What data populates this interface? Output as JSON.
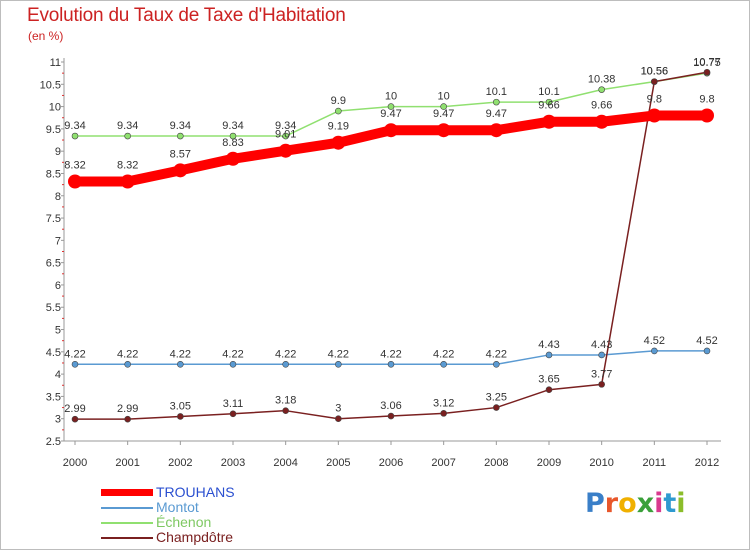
{
  "title": "Evolution du Taux de Taxe d'Habitation",
  "unit": "(en %)",
  "logo": {
    "letters": [
      {
        "ch": "P",
        "color": "#3a7fc8"
      },
      {
        "ch": "r",
        "color": "#e8572b"
      },
      {
        "ch": "o",
        "color": "#f0b000"
      },
      {
        "ch": "x",
        "color": "#3aa03a"
      },
      {
        "ch": "i",
        "color": "#d93a8e"
      },
      {
        "ch": "t",
        "color": "#2e9ad0"
      },
      {
        "ch": "i",
        "color": "#8bbd2a"
      }
    ]
  },
  "chart_data": {
    "type": "line",
    "title": "Evolution du Taux de Taxe d'Habitation",
    "ylabel": "(en %)",
    "xlabel": "",
    "x": [
      "2000",
      "2001",
      "2002",
      "2003",
      "2004",
      "2005",
      "2006",
      "2007",
      "2008",
      "2009",
      "2010",
      "2011",
      "2012"
    ],
    "ylim": [
      2.5,
      11
    ],
    "yticks": [
      "2.5",
      "3",
      "3.5",
      "4",
      "4.5",
      "5",
      "5.5",
      "6",
      "6.5",
      "7",
      "7.5",
      "8",
      "8.5",
      "9",
      "9.5",
      "10",
      "10.5",
      "11"
    ],
    "grid": false,
    "legend_position": "bottom-left",
    "series": [
      {
        "name": "TROUHANS",
        "color": "#ff0000",
        "labelcolor": "#2a4fd0",
        "values": [
          8.32,
          8.32,
          8.57,
          8.83,
          9.01,
          9.19,
          9.47,
          9.47,
          9.47,
          9.66,
          9.66,
          9.8,
          9.8
        ],
        "labels": [
          "8.32",
          "8.32",
          "8.57",
          "8.83",
          "9.01",
          "9.19",
          "9.47",
          "9.47",
          "9.47",
          "9.66",
          "9.66",
          "9.8",
          "9.8"
        ]
      },
      {
        "name": "Montot",
        "color": "#5a9ad2",
        "labelcolor": "#5a9ad2",
        "values": [
          4.22,
          4.22,
          4.22,
          4.22,
          4.22,
          4.22,
          4.22,
          4.22,
          4.22,
          4.43,
          4.43,
          4.52,
          4.52
        ],
        "labels": [
          "4.22",
          "4.22",
          "4.22",
          "4.22",
          "4.22",
          "4.22",
          "4.22",
          "4.22",
          "4.22",
          "4.43",
          "4.43",
          "4.52",
          "4.52"
        ]
      },
      {
        "name": "Échenon",
        "color": "#90e070",
        "labelcolor": "#7ec862",
        "values": [
          9.34,
          9.34,
          9.34,
          9.34,
          9.34,
          9.9,
          10,
          10,
          10.1,
          10.1,
          10.38,
          10.56,
          10.75
        ],
        "labels": [
          "9.34",
          "9.34",
          "9.34",
          "9.34",
          "9.34",
          "9.9",
          "10",
          "10",
          "10.1",
          "10.1",
          "10.38",
          "10.56",
          "10.75"
        ]
      },
      {
        "name": "Champdôtre",
        "color": "#7a2020",
        "labelcolor": "#7a2020",
        "values": [
          2.99,
          2.99,
          3.05,
          3.11,
          3.18,
          3,
          3.06,
          3.12,
          3.25,
          3.65,
          3.77,
          10.56,
          10.77
        ],
        "labels": [
          "2.99",
          "2.99",
          "3.05",
          "3.11",
          "3.18",
          "3",
          "3.06",
          "3.12",
          "3.25",
          "3.65",
          "3.77",
          "10.56",
          "10.77"
        ]
      }
    ]
  }
}
